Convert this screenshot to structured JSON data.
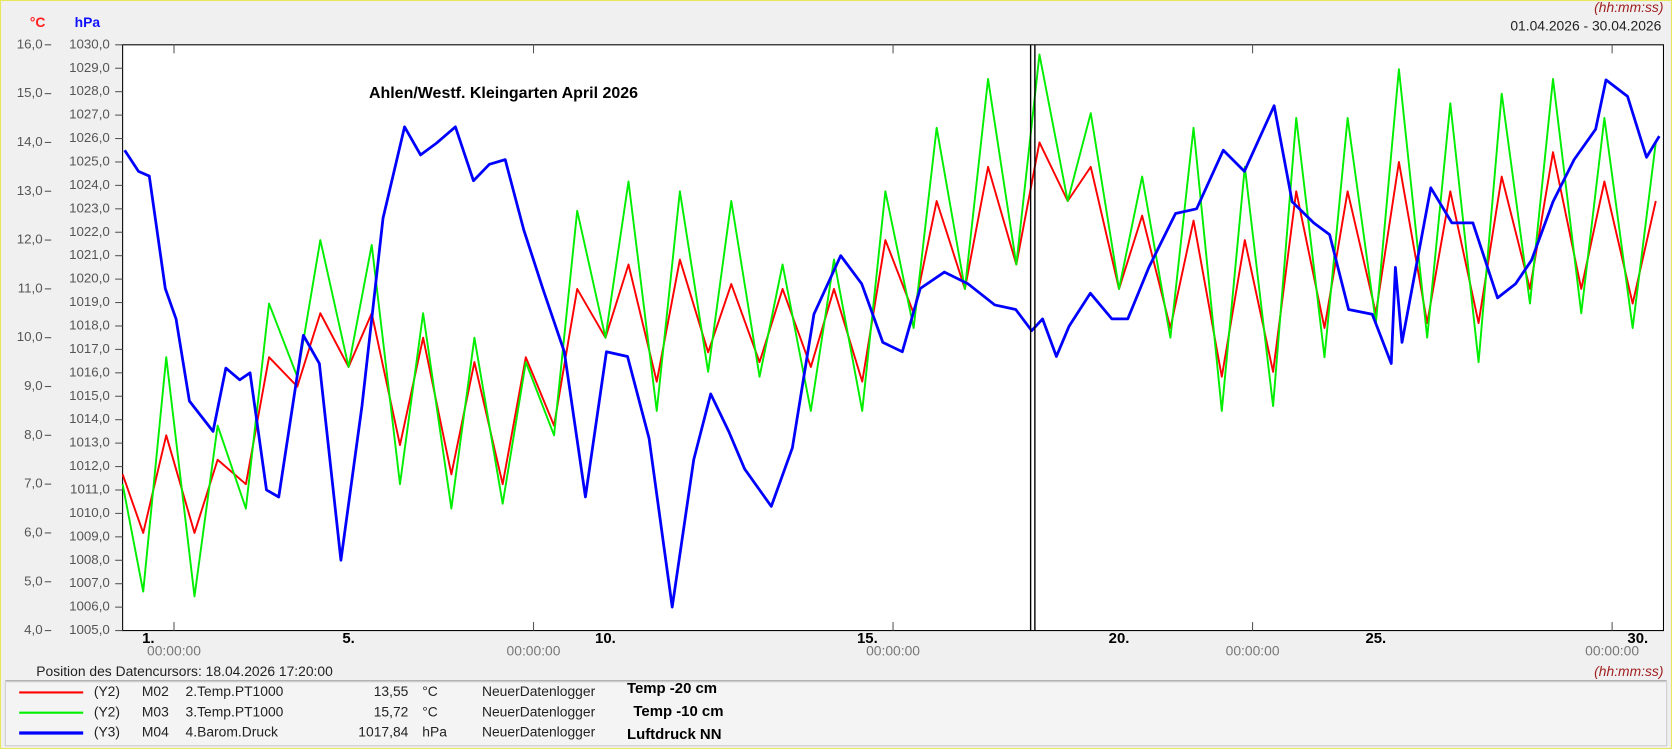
{
  "chart_data": {
    "type": "line",
    "title": "Ahlen/Westf. Kleingarten April 2026",
    "y_unit": "°C",
    "y2_unit": "hPa",
    "time_unit": "(hh:mm:ss)",
    "date_range": "01.04.2026 - 30.04.2026",
    "xlim": [
      1,
      31
    ],
    "xticks": [
      {
        "value": 2,
        "label": "00:00:00"
      },
      {
        "value": 9,
        "label": "00:00:00"
      },
      {
        "value": 16,
        "label": "00:00:00"
      },
      {
        "value": 23,
        "label": "00:00:00"
      },
      {
        "value": 30,
        "label": "00:00:00"
      }
    ],
    "day_labels": [
      {
        "value": 1.5,
        "label": "1."
      },
      {
        "value": 5.4,
        "label": "5."
      },
      {
        "value": 10.4,
        "label": "10."
      },
      {
        "value": 15.5,
        "label": "15."
      },
      {
        "value": 20.4,
        "label": "20."
      },
      {
        "value": 25.4,
        "label": "25."
      },
      {
        "value": 30.5,
        "label": "30."
      }
    ],
    "ylim": [
      4,
      16
    ],
    "yticks": [
      {
        "value": 4,
        "label": "4,0"
      },
      {
        "value": 5,
        "label": "5,0"
      },
      {
        "value": 6,
        "label": "6,0"
      },
      {
        "value": 7,
        "label": "7,0"
      },
      {
        "value": 8,
        "label": "8,0"
      },
      {
        "value": 9,
        "label": "9,0"
      },
      {
        "value": 10,
        "label": "10,0"
      },
      {
        "value": 11,
        "label": "11,0"
      },
      {
        "value": 12,
        "label": "12,0"
      },
      {
        "value": 13,
        "label": "13,0"
      },
      {
        "value": 14,
        "label": "14,0"
      },
      {
        "value": 15,
        "label": "15,0"
      },
      {
        "value": 16,
        "label": "16,0"
      }
    ],
    "y2lim": [
      1005,
      1030
    ],
    "y2ticks": [
      {
        "value": 1005,
        "label": "1005,0"
      },
      {
        "value": 1006,
        "label": "1006,0"
      },
      {
        "value": 1007,
        "label": "1007,0"
      },
      {
        "value": 1008,
        "label": "1008,0"
      },
      {
        "value": 1009,
        "label": "1009,0"
      },
      {
        "value": 1010,
        "label": "1010,0"
      },
      {
        "value": 1011,
        "label": "1011,0"
      },
      {
        "value": 1012,
        "label": "1012,0"
      },
      {
        "value": 1013,
        "label": "1013,0"
      },
      {
        "value": 1014,
        "label": "1014,0"
      },
      {
        "value": 1015,
        "label": "1015,0"
      },
      {
        "value": 1016,
        "label": "1016,0"
      },
      {
        "value": 1017,
        "label": "1017,0"
      },
      {
        "value": 1018,
        "label": "1018,0"
      },
      {
        "value": 1019,
        "label": "1019,0"
      },
      {
        "value": 1020,
        "label": "1020,0"
      },
      {
        "value": 1021,
        "label": "1021,0"
      },
      {
        "value": 1022,
        "label": "1022,0"
      },
      {
        "value": 1023,
        "label": "1023,0"
      },
      {
        "value": 1024,
        "label": "1024,0"
      },
      {
        "value": 1025,
        "label": "1025,0"
      },
      {
        "value": 1026,
        "label": "1026,0"
      },
      {
        "value": 1027,
        "label": "1027,0"
      },
      {
        "value": 1028,
        "label": "1028,0"
      },
      {
        "value": 1029,
        "label": "1029,0"
      },
      {
        "value": 1030,
        "label": "1030,0"
      }
    ],
    "cursor": {
      "label": "Position des Datencursors: 18.04.2026 17:20:00",
      "x": 18.72
    },
    "series": [
      {
        "name": "2.Temp.PT1000",
        "axis_label": "(Y2)",
        "channel": "M02",
        "cursor_value": "13,55",
        "unit": "°C",
        "device": "NeuerDatenlogger",
        "note": "Temp -20 cm",
        "color": "#ff0000",
        "axis": "y",
        "x": [
          1.0,
          1.4,
          1.85,
          2.4,
          2.85,
          3.4,
          3.85,
          4.4,
          4.85,
          5.4,
          5.85,
          6.4,
          6.85,
          7.4,
          7.85,
          8.4,
          8.85,
          9.4,
          9.85,
          10.4,
          10.85,
          11.4,
          11.85,
          12.4,
          12.85,
          13.4,
          13.85,
          14.4,
          14.85,
          15.4,
          15.85,
          16.4,
          16.85,
          17.4,
          17.85,
          18.4,
          18.85,
          19.4,
          19.85,
          20.4,
          20.85,
          21.4,
          21.85,
          22.4,
          22.85,
          23.4,
          23.85,
          24.4,
          24.85,
          25.4,
          25.85,
          26.4,
          26.85,
          27.4,
          27.85,
          28.4,
          28.85,
          29.4,
          29.85,
          30.4,
          30.85
        ],
        "values": [
          7.2,
          6.0,
          8.0,
          6.0,
          7.5,
          7.0,
          9.6,
          9.0,
          10.5,
          9.4,
          10.5,
          7.8,
          10.0,
          7.2,
          9.5,
          7.0,
          9.6,
          8.2,
          11.0,
          10.0,
          11.5,
          9.1,
          11.6,
          9.7,
          11.1,
          9.5,
          11.0,
          9.4,
          11.0,
          9.1,
          12.0,
          10.5,
          12.8,
          11.0,
          13.5,
          11.5,
          14.0,
          12.8,
          13.5,
          11.0,
          12.5,
          10.2,
          12.4,
          9.2,
          12.0,
          9.3,
          13.0,
          10.2,
          13.0,
          10.5,
          13.6,
          10.3,
          13.0,
          10.3,
          13.3,
          11.0,
          13.8,
          11.0,
          13.2,
          10.7,
          12.8
        ]
      },
      {
        "name": "3.Temp.PT1000",
        "axis_label": "(Y2)",
        "channel": "M03",
        "cursor_value": "15,72",
        "unit": "°C",
        "device": "NeuerDatenlogger",
        "note": "Temp -10 cm",
        "color": "#00ee00",
        "axis": "y",
        "x": [
          1.0,
          1.4,
          1.85,
          2.4,
          2.85,
          3.4,
          3.85,
          4.4,
          4.85,
          5.4,
          5.85,
          6.4,
          6.85,
          7.4,
          7.85,
          8.4,
          8.85,
          9.4,
          9.85,
          10.4,
          10.85,
          11.4,
          11.85,
          12.4,
          12.85,
          13.4,
          13.85,
          14.4,
          14.85,
          15.4,
          15.85,
          16.4,
          16.85,
          17.4,
          17.85,
          18.4,
          18.85,
          19.4,
          19.85,
          20.4,
          20.85,
          21.4,
          21.85,
          22.4,
          22.85,
          23.4,
          23.85,
          24.4,
          24.85,
          25.4,
          25.85,
          26.4,
          26.85,
          27.4,
          27.85,
          28.4,
          28.85,
          29.4,
          29.85,
          30.4,
          30.85
        ],
        "values": [
          7.0,
          4.8,
          9.6,
          4.7,
          8.2,
          6.5,
          10.7,
          9.2,
          12.0,
          9.4,
          11.9,
          7.0,
          10.5,
          6.5,
          10.0,
          6.6,
          9.5,
          8.0,
          12.6,
          10.0,
          13.2,
          8.5,
          13.0,
          9.3,
          12.8,
          9.2,
          11.5,
          8.5,
          11.6,
          8.5,
          13.0,
          10.2,
          14.3,
          11.0,
          15.3,
          11.5,
          15.8,
          12.8,
          14.6,
          11.0,
          13.3,
          10.0,
          14.3,
          8.5,
          13.5,
          8.6,
          14.5,
          9.6,
          14.5,
          10.3,
          15.5,
          10.0,
          14.8,
          9.5,
          15.0,
          10.7,
          15.3,
          10.5,
          14.5,
          10.2,
          14.0
        ]
      },
      {
        "name": "4.Barom.Druck",
        "axis_label": "(Y3)",
        "channel": "M04",
        "cursor_value": "1017,84",
        "unit": "hPa",
        "device": "NeuerDatenlogger",
        "note": "Luftdruck NN",
        "color": "#0000ff",
        "axis": "y2",
        "x": [
          1.04,
          1.31,
          1.52,
          1.83,
          2.04,
          2.3,
          2.76,
          3.01,
          3.28,
          3.48,
          3.8,
          4.04,
          4.52,
          4.83,
          5.25,
          5.66,
          6.07,
          6.49,
          6.8,
          7.11,
          7.48,
          7.83,
          8.14,
          8.45,
          8.81,
          9.18,
          9.6,
          10.01,
          10.42,
          10.83,
          11.25,
          11.7,
          12.12,
          12.45,
          12.8,
          13.11,
          13.63,
          14.04,
          14.46,
          14.98,
          15.39,
          15.8,
          16.18,
          16.53,
          17.0,
          17.46,
          17.98,
          18.39,
          18.7,
          18.91,
          19.18,
          19.43,
          19.84,
          20.26,
          20.57,
          20.98,
          21.5,
          21.91,
          22.43,
          22.84,
          23.42,
          23.77,
          24.19,
          24.5,
          24.87,
          25.33,
          25.7,
          25.78,
          25.91,
          26.47,
          26.88,
          27.29,
          27.77,
          28.12,
          28.43,
          28.85,
          29.26,
          29.68,
          29.88,
          30.3,
          30.67,
          30.92
        ],
        "values": [
          1025.5,
          1024.6,
          1024.4,
          1019.6,
          1018.3,
          1014.8,
          1013.5,
          1016.2,
          1015.7,
          1016.0,
          1011.0,
          1010.7,
          1017.6,
          1016.4,
          1008.0,
          1014.6,
          1022.6,
          1026.5,
          1025.3,
          1025.8,
          1026.5,
          1024.2,
          1024.9,
          1025.1,
          1022.1,
          1019.6,
          1016.9,
          1010.7,
          1016.9,
          1016.7,
          1013.2,
          1006.0,
          1012.3,
          1015.1,
          1013.5,
          1011.9,
          1010.3,
          1012.8,
          1018.5,
          1021.0,
          1019.8,
          1017.3,
          1016.9,
          1019.6,
          1020.3,
          1019.8,
          1018.9,
          1018.7,
          1017.8,
          1018.3,
          1016.7,
          1018.0,
          1019.4,
          1018.3,
          1018.3,
          1020.5,
          1022.8,
          1023.0,
          1025.5,
          1024.6,
          1027.4,
          1023.3,
          1022.4,
          1021.9,
          1018.7,
          1018.5,
          1016.4,
          1020.5,
          1017.3,
          1023.9,
          1022.4,
          1022.4,
          1019.2,
          1019.8,
          1020.8,
          1023.3,
          1025.1,
          1026.4,
          1028.5,
          1027.8,
          1025.2,
          1026.1
        ]
      }
    ]
  }
}
